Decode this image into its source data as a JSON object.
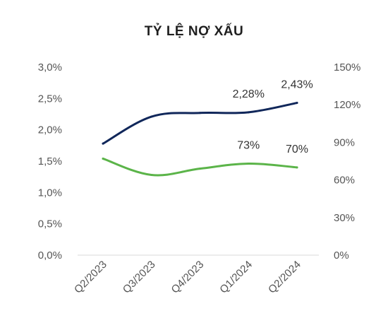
{
  "chart_data": {
    "type": "line",
    "title": "TỶ LỆ NỢ XẤU",
    "categories": [
      "Q2/2023",
      "Q3/2023",
      "Q4/2023",
      "Q1/2024",
      "Q2/2024"
    ],
    "y_left": {
      "ticks": [
        "0,0%",
        "0,5%",
        "1,0%",
        "1,5%",
        "2,0%",
        "2,5%",
        "3,0%"
      ],
      "range": [
        0,
        3.0
      ]
    },
    "y_right": {
      "ticks": [
        "0%",
        "30%",
        "60%",
        "90%",
        "120%",
        "150%"
      ],
      "range": [
        0,
        150
      ]
    },
    "series": [
      {
        "axis": "left",
        "color": "#10275a",
        "values": [
          1.78,
          2.21,
          2.27,
          2.28,
          2.43
        ],
        "data_labels": [
          "",
          "",
          "",
          "2,28%",
          "2,43%"
        ]
      },
      {
        "axis": "right",
        "color": "#5bb449",
        "values": [
          77,
          64,
          69,
          73,
          70
        ],
        "data_labels": [
          "",
          "",
          "",
          "73%",
          "70%"
        ]
      }
    ],
    "legend": "none",
    "grid": false
  }
}
